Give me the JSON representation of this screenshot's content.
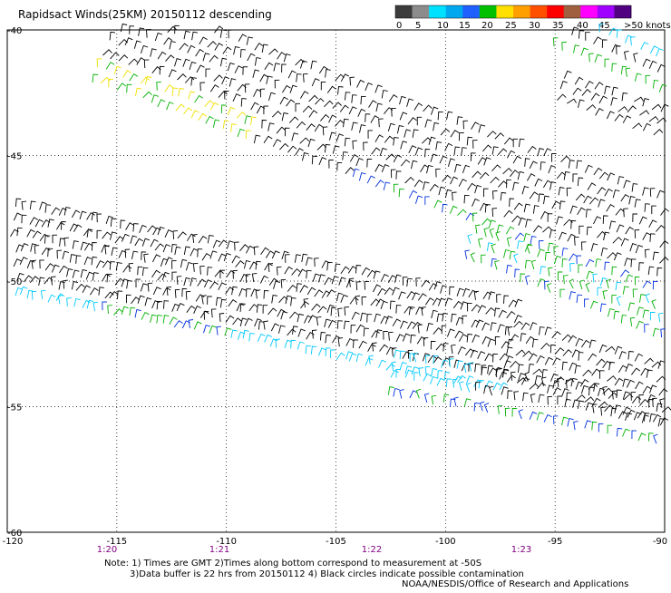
{
  "title": "Rapidsact Winds(25KM) 20150112 descending",
  "legend": {
    "labels": [
      "0",
      "5",
      "10",
      "15",
      "20",
      "25",
      "30",
      "35",
      "40",
      "45",
      ">50 knots"
    ],
    "colors": [
      "#3c3c3c",
      "#8c8c8c",
      "#00e0ff",
      "#00a8f0",
      "#2060ff",
      "#00c000",
      "#ffe000",
      "#ffa000",
      "#ff5000",
      "#ff0000",
      "#a06040",
      "#ff00ff",
      "#a000ff",
      "#500080"
    ]
  },
  "axes": {
    "lon_ticks": [
      "-120",
      "-115",
      "-110",
      "-105",
      "-100",
      "-95",
      "-90"
    ],
    "lat_ticks": [
      "-40",
      "-45",
      "-50",
      "-55",
      "-60"
    ],
    "time_ticks": [
      "1:20",
      "1:21",
      "1:22",
      "1:23"
    ],
    "time_color": "#800080"
  },
  "notes": {
    "line1": "Note: 1) Times are GMT 2)Times along bottom correspond to measurement at -50S",
    "line2": "3)Data buffer is 22 hrs from 20150112 4) Black circles indicate possible contamination",
    "line3": "NOAA/NESDIS/Office of Research and Applications"
  },
  "swath_colors": {
    "black": "#000000",
    "cyan": "#00c8ff",
    "blue": "#0030e0",
    "green": "#00b000",
    "yellow": "#f0e000"
  }
}
